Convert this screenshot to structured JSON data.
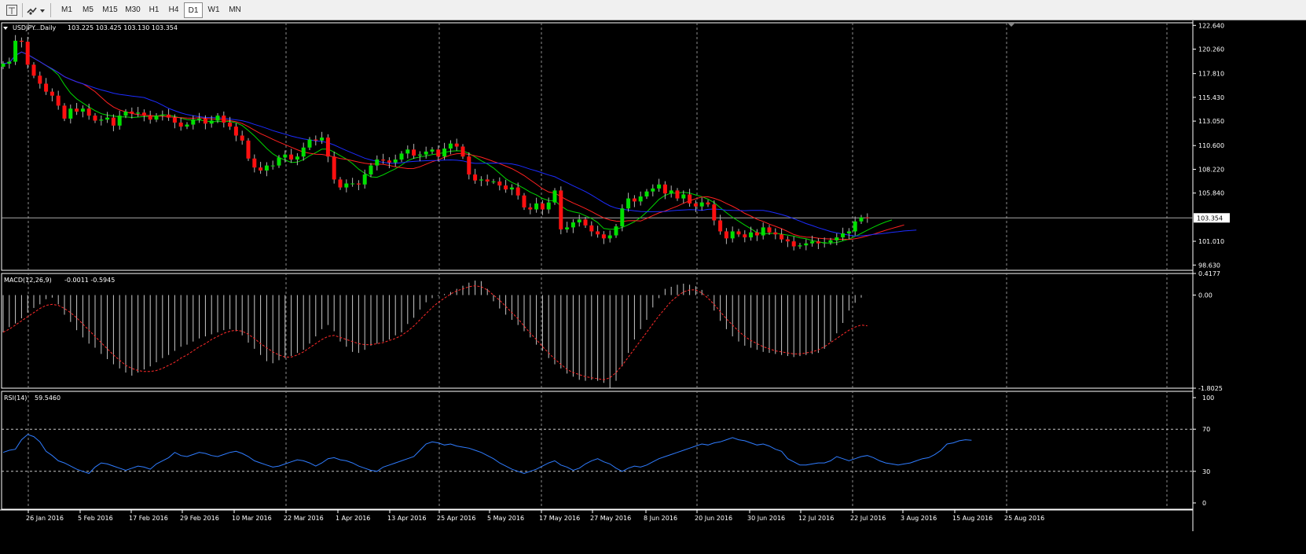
{
  "toolbar": {
    "timeframes": [
      "M1",
      "M5",
      "M15",
      "M30",
      "H1",
      "H4",
      "D1",
      "W1",
      "MN"
    ],
    "active": "D1"
  },
  "chart_data": [
    {
      "type": "candlestick",
      "title": "USDJPY...Daily",
      "ohlc_text": "103.225 103.425 103.130 103.354",
      "current_price": 103.354,
      "current_price_label": "103.354",
      "ylim": [
        98.1,
        122.9
      ],
      "y_ticks": [
        "122.640",
        "120.260",
        "117.810",
        "115.430",
        "113.050",
        "110.600",
        "108.220",
        "105.840",
        "101.010",
        "98.630"
      ],
      "x_ticks": [
        "26 Jan 2016",
        "5 Feb 2016",
        "17 Feb 2016",
        "29 Feb 2016",
        "10 Mar 2016",
        "22 Mar 2016",
        "1 Apr 2016",
        "13 Apr 2016",
        "25 Apr 2016",
        "5 May 2016",
        "17 May 2016",
        "27 May 2016",
        "8 Jun 2016",
        "20 Jun 2016",
        "30 Jun 2016",
        "12 Jul 2016",
        "22 Jul 2016",
        "3 Aug 2016",
        "15 Aug 2016",
        "25 Aug 2016"
      ],
      "closes": [
        118.8,
        119.0,
        121.1,
        121.0,
        118.7,
        117.6,
        116.8,
        116.0,
        115.6,
        114.6,
        113.3,
        114.3,
        114.0,
        114.3,
        113.6,
        113.1,
        113.2,
        113.4,
        112.6,
        113.6,
        114.0,
        113.8,
        113.9,
        113.6,
        113.2,
        113.6,
        113.7,
        113.4,
        112.9,
        112.5,
        112.7,
        113.2,
        113.3,
        112.8,
        113.1,
        113.6,
        112.9,
        112.5,
        111.6,
        111.1,
        109.3,
        108.4,
        108.1,
        108.6,
        108.6,
        109.4,
        109.7,
        109.2,
        109.5,
        110.4,
        111.2,
        111.1,
        111.4,
        109.5,
        107.2,
        106.4,
        106.8,
        106.8,
        106.7,
        107.7,
        108.6,
        109.2,
        109.1,
        108.9,
        109.2,
        109.8,
        110.2,
        109.6,
        109.7,
        110.0,
        110.2,
        109.5,
        110.3,
        110.8,
        110.5,
        109.5,
        107.7,
        107.1,
        107.2,
        107.0,
        107.0,
        106.6,
        106.2,
        106.4,
        105.6,
        104.4,
        104.2,
        104.8,
        104.2,
        104.9,
        106.1,
        102.2,
        102.4,
        102.9,
        103.2,
        102.6,
        102.0,
        101.7,
        101.3,
        101.6,
        102.5,
        104.3,
        105.3,
        105.0,
        105.5,
        106.0,
        106.3,
        106.7,
        105.8,
        106.1,
        105.3,
        105.7,
        104.8,
        104.5,
        104.9,
        104.7,
        103.1,
        102.0,
        101.3,
        102.0,
        101.7,
        101.4,
        101.9,
        101.6,
        102.4,
        101.9,
        101.7,
        101.2,
        101.0,
        100.5,
        100.6,
        100.8,
        101.0,
        100.8,
        100.9,
        101.1,
        101.4,
        101.8,
        102.0,
        103.0,
        103.4,
        103.354
      ],
      "series": [
        {
          "name": "MA fast",
          "color": "#00d400"
        },
        {
          "name": "MA medium",
          "color": "#ff2020"
        },
        {
          "name": "MA slow",
          "color": "#1c2cff"
        }
      ],
      "colors": {
        "bull": "#00e000",
        "bear": "#ff1010",
        "wick": "#b4b4b4",
        "grid": "#8c8c8c"
      }
    },
    {
      "type": "macd",
      "title": "MACD(12,26,9)",
      "values_text": "-0.0011 -0.5945",
      "ylim": [
        -1.8025,
        0.4177
      ],
      "y_ticks": [
        "0.4177",
        "0.00",
        "-1.8025"
      ],
      "histogram": [
        -0.72,
        -0.62,
        -0.55,
        -0.45,
        -0.34,
        -0.25,
        -0.18,
        -0.08,
        -0.05,
        -0.18,
        -0.38,
        -0.52,
        -0.68,
        -0.82,
        -0.94,
        -1.02,
        -1.14,
        -1.24,
        -1.34,
        -1.42,
        -1.5,
        -1.56,
        -1.5,
        -1.44,
        -1.38,
        -1.3,
        -1.22,
        -1.16,
        -1.08,
        -1.0,
        -0.96,
        -0.9,
        -0.84,
        -0.8,
        -0.76,
        -0.72,
        -0.68,
        -0.66,
        -0.7,
        -0.78,
        -0.92,
        -1.04,
        -1.16,
        -1.28,
        -1.32,
        -1.26,
        -1.22,
        -1.18,
        -1.12,
        -1.06,
        -0.94,
        -0.8,
        -0.66,
        -0.58,
        -0.7,
        -0.9,
        -1.0,
        -1.1,
        -1.12,
        -1.06,
        -0.98,
        -0.94,
        -0.9,
        -0.86,
        -0.78,
        -0.72,
        -0.56,
        -0.44,
        -0.28,
        -0.14,
        -0.06,
        -0.02,
        0.02,
        0.06,
        0.12,
        0.18,
        0.24,
        0.28,
        0.27,
        0.12,
        -0.12,
        -0.26,
        -0.38,
        -0.48,
        -0.58,
        -0.7,
        -0.82,
        -0.96,
        -1.08,
        -1.22,
        -1.34,
        -1.42,
        -1.52,
        -1.58,
        -1.64,
        -1.66,
        -1.64,
        -1.66,
        -1.7,
        -1.8,
        -1.66,
        -1.38,
        -1.12,
        -0.86,
        -0.66,
        -0.48,
        -0.24,
        -0.06,
        0.12,
        0.16,
        0.2,
        0.22,
        0.2,
        0.17,
        0.1,
        -0.02,
        -0.3,
        -0.5,
        -0.66,
        -0.8,
        -0.9,
        -0.98,
        -1.02,
        -1.06,
        -1.1,
        -1.12,
        -1.14,
        -1.16,
        -1.18,
        -1.2,
        -1.18,
        -1.16,
        -1.14,
        -1.12,
        -1.04,
        -0.9,
        -0.74,
        -0.54,
        -0.3,
        -0.15,
        -0.05,
        -0.0011
      ],
      "signal": [
        -0.72,
        -0.66,
        -0.58,
        -0.5,
        -0.42,
        -0.34,
        -0.26,
        -0.2,
        -0.18,
        -0.2,
        -0.26,
        -0.34,
        -0.44,
        -0.56,
        -0.68,
        -0.8,
        -0.92,
        -1.04,
        -1.16,
        -1.26,
        -1.36,
        -1.42,
        -1.46,
        -1.48,
        -1.48,
        -1.46,
        -1.42,
        -1.36,
        -1.3,
        -1.22,
        -1.16,
        -1.08,
        -1.0,
        -0.94,
        -0.86,
        -0.8,
        -0.74,
        -0.7,
        -0.68,
        -0.7,
        -0.76,
        -0.84,
        -0.94,
        -1.02,
        -1.1,
        -1.16,
        -1.2,
        -1.2,
        -1.16,
        -1.1,
        -1.02,
        -0.94,
        -0.86,
        -0.8,
        -0.78,
        -0.82,
        -0.86,
        -0.9,
        -0.94,
        -0.96,
        -0.96,
        -0.94,
        -0.92,
        -0.88,
        -0.84,
        -0.78,
        -0.7,
        -0.6,
        -0.48,
        -0.36,
        -0.24,
        -0.14,
        -0.06,
        0.02,
        0.08,
        0.12,
        0.16,
        0.18,
        0.16,
        0.1,
        0.0,
        -0.1,
        -0.22,
        -0.34,
        -0.46,
        -0.6,
        -0.74,
        -0.86,
        -1.0,
        -1.12,
        -1.24,
        -1.34,
        -1.44,
        -1.5,
        -1.54,
        -1.58,
        -1.6,
        -1.62,
        -1.64,
        -1.6,
        -1.5,
        -1.36,
        -1.2,
        -1.04,
        -0.88,
        -0.72,
        -0.56,
        -0.4,
        -0.26,
        -0.12,
        -0.02,
        0.06,
        0.1,
        0.1,
        0.04,
        -0.06,
        -0.18,
        -0.32,
        -0.46,
        -0.58,
        -0.7,
        -0.8,
        -0.88,
        -0.94,
        -1.0,
        -1.04,
        -1.08,
        -1.1,
        -1.12,
        -1.14,
        -1.14,
        -1.12,
        -1.1,
        -1.06,
        -1.0,
        -0.92,
        -0.84,
        -0.76,
        -0.68,
        -0.62,
        -0.58,
        -0.5945
      ],
      "colors": {
        "histogram": "#c8c8c8",
        "signal": "#ff2a2a"
      }
    },
    {
      "type": "line",
      "title": "RSI(14)",
      "values_text": "59.5460",
      "ylim": [
        0,
        100
      ],
      "y_ticks": [
        "100",
        "70",
        "30",
        "0"
      ],
      "levels": [
        70,
        30
      ],
      "values": [
        48,
        50,
        51,
        60,
        65,
        63,
        58,
        49,
        45,
        40,
        38,
        35,
        32,
        30,
        28,
        34,
        38,
        37,
        35,
        33,
        31,
        33,
        35,
        34,
        32,
        37,
        40,
        43,
        48,
        45,
        44,
        46,
        48,
        47,
        45,
        44,
        46,
        48,
        49,
        47,
        44,
        40,
        38,
        36,
        34,
        35,
        37,
        39,
        41,
        40,
        38,
        35,
        38,
        42,
        43,
        41,
        40,
        38,
        35,
        33,
        31,
        30,
        34,
        36,
        38,
        40,
        42,
        44,
        50,
        56,
        58,
        57,
        55,
        56,
        54,
        53,
        52,
        50,
        48,
        45,
        42,
        38,
        35,
        32,
        30,
        28,
        30,
        32,
        35,
        38,
        40,
        36,
        34,
        31,
        33,
        37,
        40,
        42,
        39,
        37,
        33,
        30,
        33,
        35,
        34,
        36,
        39,
        42,
        44,
        46,
        48,
        50,
        52,
        54,
        56,
        55,
        57,
        58,
        60,
        62,
        60,
        59,
        57,
        55,
        56,
        54,
        51,
        49,
        42,
        39,
        36,
        36,
        37,
        38,
        38,
        40,
        44,
        42,
        40,
        42,
        44,
        45,
        43,
        40,
        38,
        37,
        36,
        37,
        38,
        40,
        42,
        43,
        46,
        50,
        56,
        57,
        59,
        60,
        59.546
      ],
      "colors": {
        "line": "#2f7cff",
        "levels": "#c8c8c8"
      }
    }
  ]
}
